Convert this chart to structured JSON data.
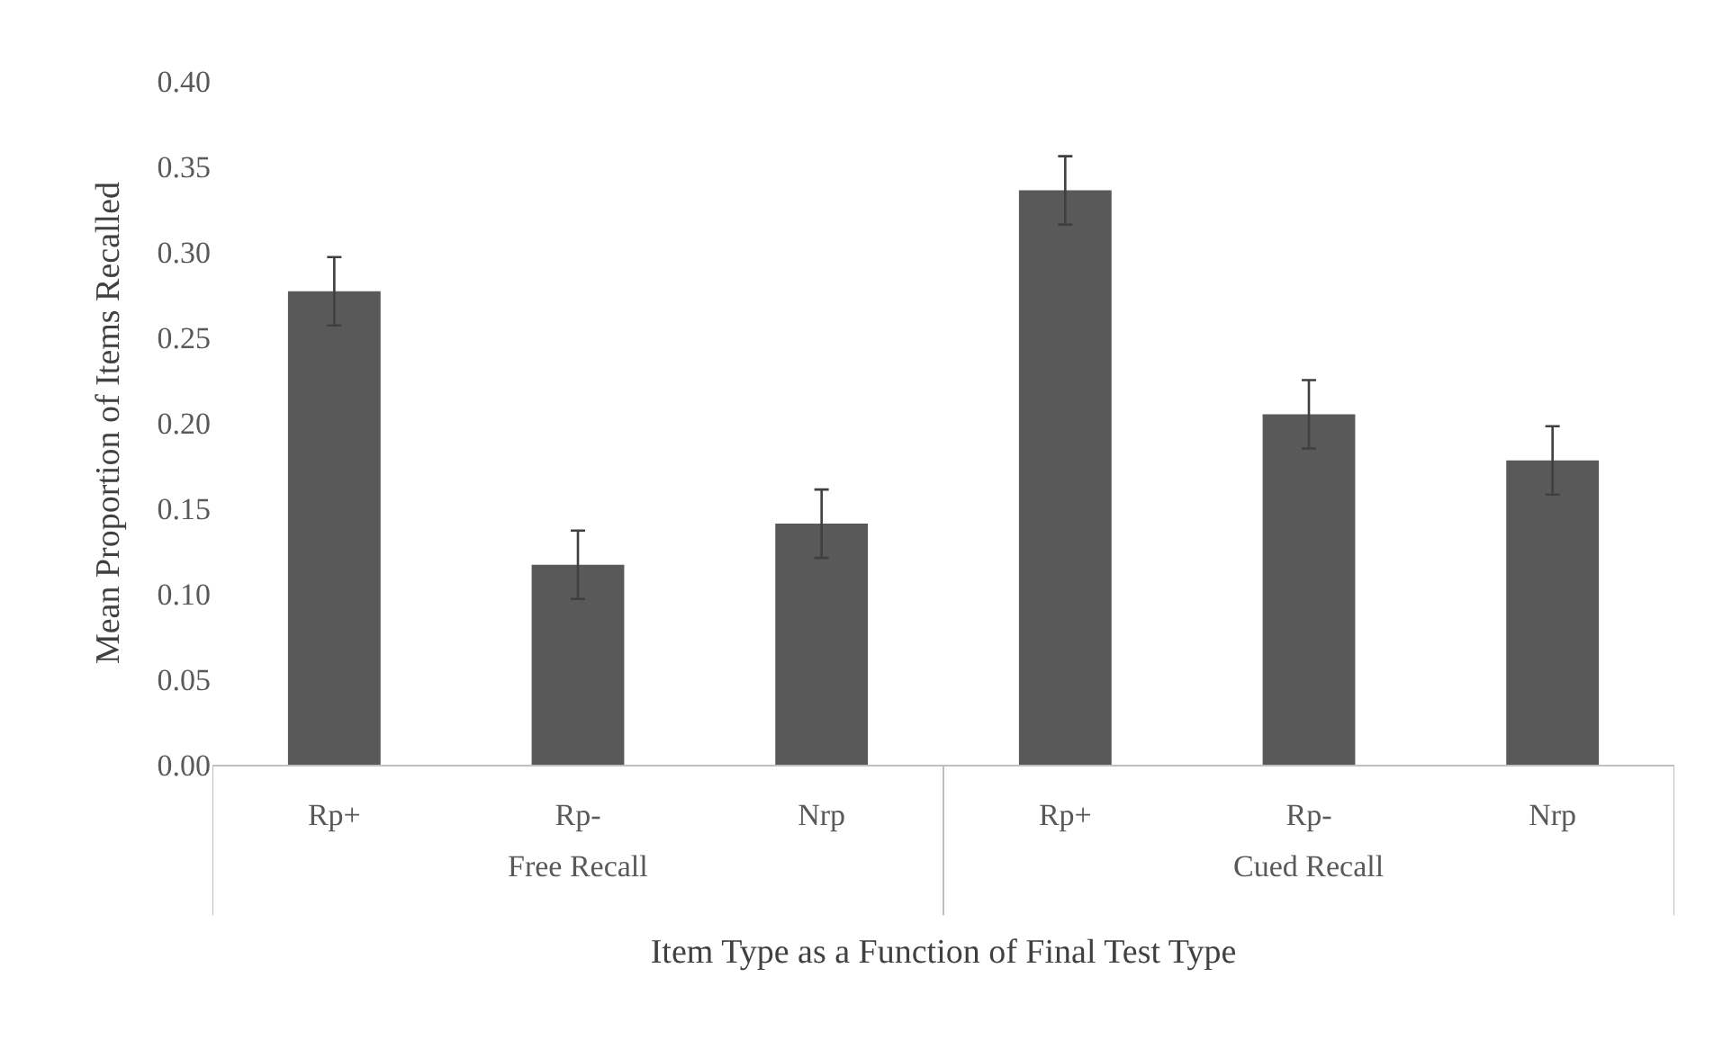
{
  "chart_data": {
    "type": "bar",
    "xlabel": "Item Type as a Function of Final Test Type",
    "ylabel": "Mean Proportion of Items Recalled",
    "categories": [
      "Rp+",
      "Rp-",
      "Nrp",
      "Rp+",
      "Rp-",
      "Nrp"
    ],
    "values": [
      0.277,
      0.117,
      0.141,
      0.336,
      0.205,
      0.178
    ],
    "errors": [
      0.02,
      0.02,
      0.02,
      0.02,
      0.02,
      0.02
    ],
    "color": "#595959",
    "annotations": [
      "Free Recall",
      "Cued Recall"
    ],
    "ylim": [
      0,
      0.4
    ],
    "yticks": [
      {
        "value": 0,
        "label": "0.00"
      },
      {
        "value": 0.05,
        "label": "0.05"
      },
      {
        "value": 0.1,
        "label": "0.10"
      },
      {
        "value": 0.15,
        "label": "0.15"
      },
      {
        "value": 0.2,
        "label": "0.20"
      },
      {
        "value": 0.25,
        "label": "0.25"
      },
      {
        "value": 0.3,
        "label": "0.30"
      },
      {
        "value": 0.35,
        "label": "0.35"
      },
      {
        "value": 0.4,
        "label": "0.40"
      }
    ],
    "legend": false
  }
}
